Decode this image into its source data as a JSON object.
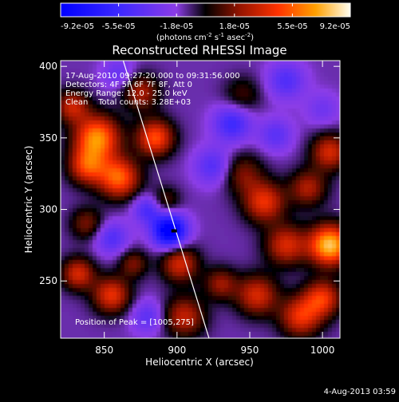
{
  "chart_data": {
    "type": "heatmap",
    "title": "Reconstructed RHESSI Image",
    "xlabel": "Heliocentric X (arcsec)",
    "ylabel": "Heliocentric Y (arcsec)",
    "xlim": [
      820,
      1012
    ],
    "ylim": [
      210,
      404
    ],
    "xticks": [
      850,
      900,
      950,
      1000
    ],
    "yticks": [
      250,
      300,
      350,
      400
    ],
    "colorbar": {
      "ticks": [
        "-9.2e-05",
        "-5.5e-05",
        "-1.8e-05",
        "1.8e-05",
        "5.5e-05",
        "9.2e-05"
      ],
      "range": [
        -9.2e-05,
        9.2e-05
      ],
      "unit_label_parts": [
        "(photons cm",
        "-2",
        " s",
        "-1",
        " asec",
        "-2",
        ")"
      ]
    },
    "annotations": [
      "17-Aug-2010 09:27:20.000 to 09:31:56.000",
      "Detectors: 4F 5F 6F 7F 8F, Att 0",
      "Energy Range: 12.0 - 25.0 keV",
      "Clean    Total counts: 3.28E+03"
    ],
    "peak_label": "Position of Peak = [1005,275]",
    "peak": [
      1005,
      275
    ],
    "limb_line": [
      [
        863,
        404
      ],
      [
        922,
        210
      ]
    ],
    "blobs": [
      {
        "x": 845,
        "y": 350,
        "v": 0.85,
        "s": 11
      },
      {
        "x": 838,
        "y": 330,
        "v": 0.6,
        "s": 9
      },
      {
        "x": 860,
        "y": 322,
        "v": 0.75,
        "s": 10
      },
      {
        "x": 828,
        "y": 372,
        "v": 0.5,
        "s": 8
      },
      {
        "x": 885,
        "y": 350,
        "v": 0.7,
        "s": 9
      },
      {
        "x": 875,
        "y": 382,
        "v": 0.45,
        "s": 9
      },
      {
        "x": 838,
        "y": 290,
        "v": 0.35,
        "s": 8
      },
      {
        "x": 832,
        "y": 255,
        "v": 0.55,
        "s": 8
      },
      {
        "x": 855,
        "y": 240,
        "v": 0.6,
        "s": 9
      },
      {
        "x": 870,
        "y": 262,
        "v": 0.35,
        "s": 7
      },
      {
        "x": 902,
        "y": 262,
        "v": 0.55,
        "s": 9
      },
      {
        "x": 905,
        "y": 225,
        "v": 0.5,
        "s": 10
      },
      {
        "x": 892,
        "y": 306,
        "v": 0.3,
        "s": 7
      },
      {
        "x": 945,
        "y": 325,
        "v": 0.35,
        "s": 10
      },
      {
        "x": 960,
        "y": 305,
        "v": 0.6,
        "s": 10
      },
      {
        "x": 975,
        "y": 275,
        "v": 0.55,
        "s": 10
      },
      {
        "x": 990,
        "y": 315,
        "v": 0.45,
        "s": 9
      },
      {
        "x": 1005,
        "y": 275,
        "v": 1.0,
        "s": 10
      },
      {
        "x": 1005,
        "y": 340,
        "v": 0.55,
        "s": 9
      },
      {
        "x": 1000,
        "y": 238,
        "v": 0.6,
        "s": 9
      },
      {
        "x": 955,
        "y": 240,
        "v": 0.55,
        "s": 10
      },
      {
        "x": 985,
        "y": 225,
        "v": 0.6,
        "s": 10
      },
      {
        "x": 930,
        "y": 248,
        "v": 0.4,
        "s": 8
      },
      {
        "x": 945,
        "y": 380,
        "v": 0.25,
        "s": 9
      },
      {
        "x": 895,
        "y": 285,
        "v": -1.0,
        "s": 8
      },
      {
        "x": 880,
        "y": 300,
        "v": -0.4,
        "s": 7
      },
      {
        "x": 855,
        "y": 280,
        "v": -0.35,
        "s": 8
      },
      {
        "x": 938,
        "y": 360,
        "v": -0.45,
        "s": 9
      },
      {
        "x": 925,
        "y": 330,
        "v": -0.35,
        "s": 9
      },
      {
        "x": 975,
        "y": 390,
        "v": -0.35,
        "s": 9
      },
      {
        "x": 968,
        "y": 352,
        "v": -0.3,
        "s": 8
      },
      {
        "x": 880,
        "y": 225,
        "v": -0.3,
        "s": 8
      },
      {
        "x": 860,
        "y": 395,
        "v": -0.25,
        "s": 8
      },
      {
        "x": 1000,
        "y": 370,
        "v": -0.2,
        "s": 8
      }
    ],
    "background_level": -0.15
  },
  "footer": {
    "date": "4-Aug-2013 03:59"
  },
  "colors": {
    "background": "#000000",
    "axis": "#ffffff",
    "limb_line": "#ffffff"
  }
}
